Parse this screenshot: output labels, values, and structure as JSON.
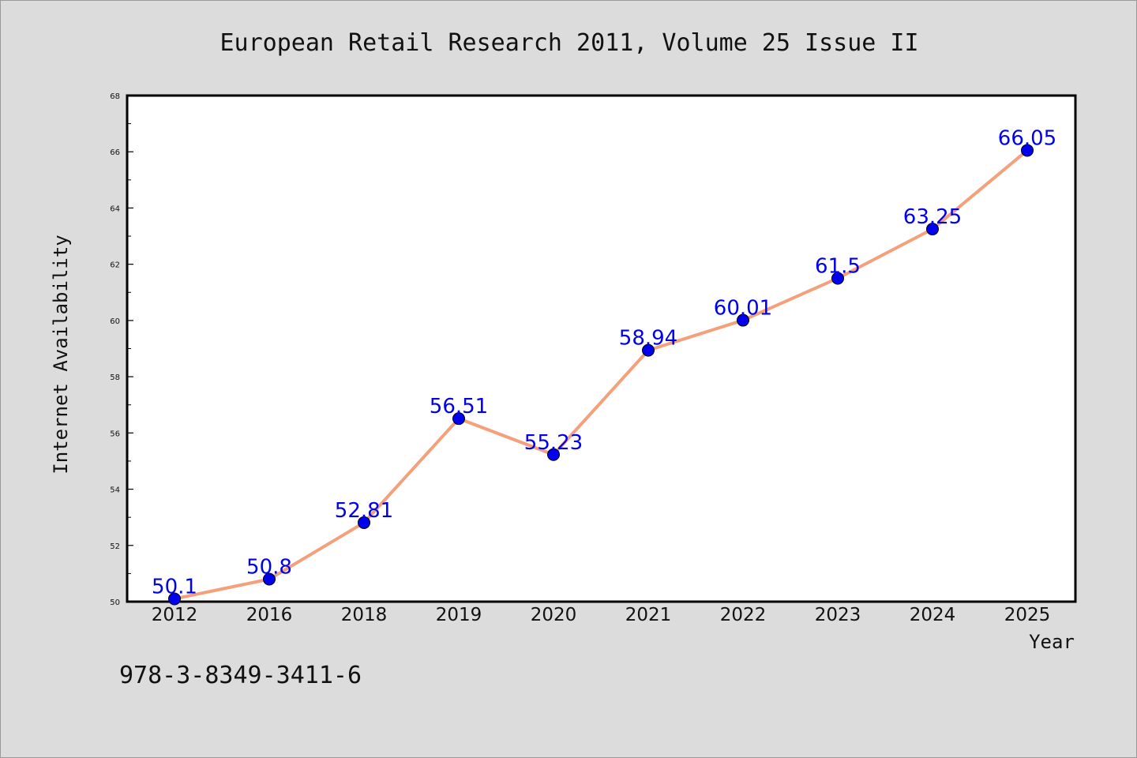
{
  "chart_data": {
    "type": "line",
    "title": "European Retail Research 2011, Volume 25 Issue II",
    "xlabel": "Year",
    "ylabel": "Internet Availability",
    "categories": [
      "2012",
      "2016",
      "2018",
      "2019",
      "2020",
      "2021",
      "2022",
      "2023",
      "2024",
      "2025"
    ],
    "values": [
      50.1,
      50.8,
      52.81,
      56.51,
      55.23,
      58.94,
      60.01,
      61.5,
      63.25,
      66.05
    ],
    "data_labels": [
      "50.1",
      "50.8",
      "52.81",
      "56.51",
      "55.23",
      "58.94",
      "60.01",
      "61.5",
      "63.25",
      "66.05"
    ],
    "ylim": [
      50,
      68
    ],
    "yticks": [
      50,
      52,
      54,
      56,
      58,
      60,
      62,
      64,
      66,
      68
    ],
    "grid": false,
    "legend": "none",
    "colors": {
      "line": "#f4a07a",
      "marker": "#0000ee",
      "label": "#0000ee",
      "background": "#dcdcdc",
      "plot_background": "#ffffff"
    }
  },
  "footer": {
    "isbn": "978-3-8349-3411-6"
  }
}
